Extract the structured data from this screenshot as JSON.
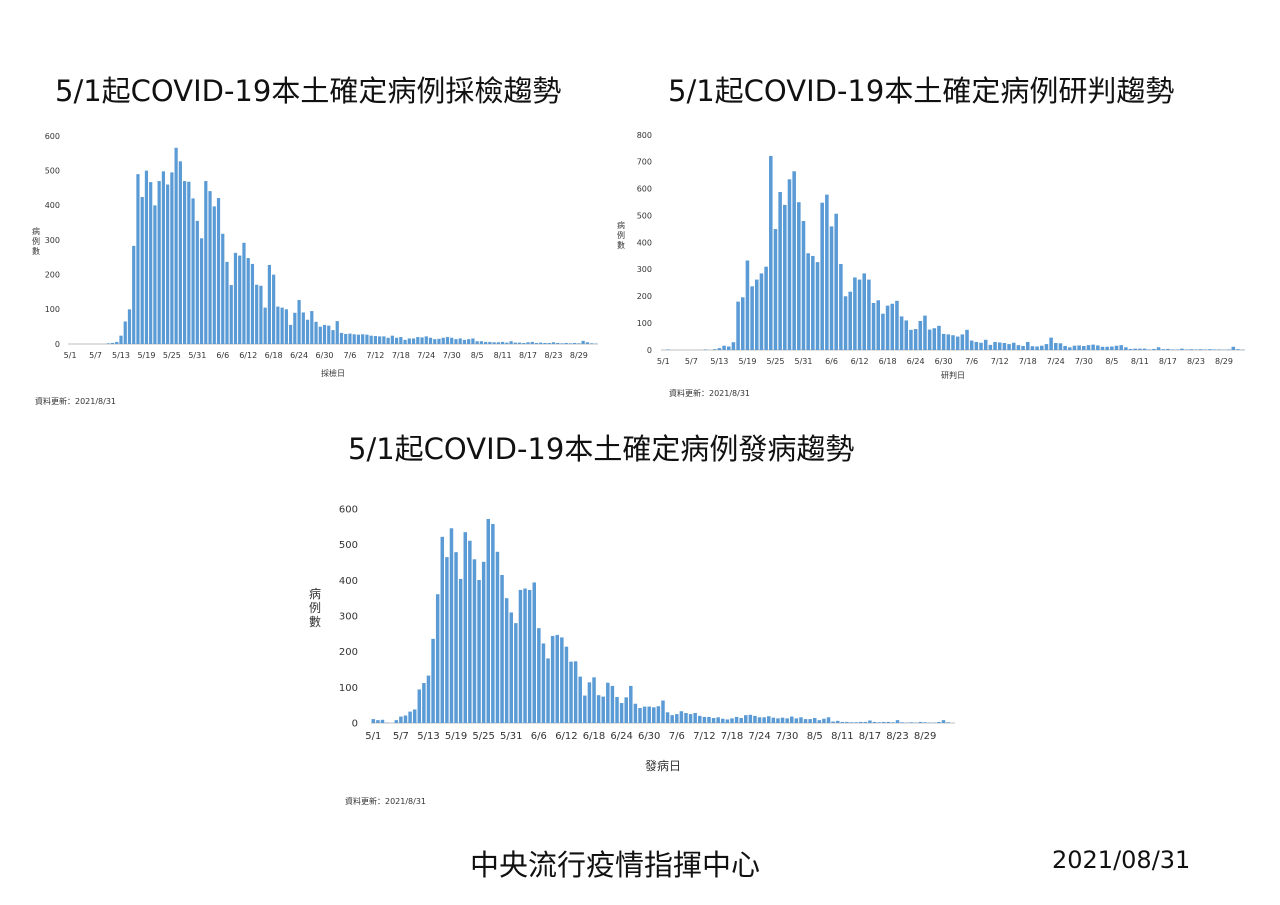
{
  "titles": {
    "sampling": "5/1起COVID-19本土確定病例採檢趨勢",
    "confirm": "5/1起COVID-19本土確定病例研判趨勢",
    "onset": "5/1起COVID-19本土確定病例發病趨勢"
  },
  "update_note": "資料更新：2021/8/31",
  "footer": {
    "org": "中央流行疫情指揮中心",
    "date": "2021/08/31"
  },
  "colors": {
    "bar": "#5b9bd5",
    "axis": "#bfbfbf"
  },
  "chart_data": [
    {
      "type": "bar",
      "id": "sampling",
      "xlabel": "採檢日",
      "ylabel": "病例數",
      "ylim": [
        0,
        600
      ],
      "yticks": [
        0,
        100,
        200,
        300,
        400,
        500,
        600
      ],
      "xtick_labels": [
        "5/1",
        "5/7",
        "5/13",
        "5/19",
        "5/25",
        "5/31",
        "6/6",
        "6/12",
        "6/18",
        "6/24",
        "6/30",
        "7/6",
        "7/12",
        "7/18",
        "7/24",
        "7/30",
        "8/5",
        "8/11",
        "8/17",
        "8/23",
        "8/29"
      ],
      "start": "5/1",
      "values": [
        0,
        0,
        0,
        0,
        0,
        0,
        0,
        0,
        0,
        2,
        3,
        6,
        24,
        65,
        100,
        283,
        490,
        424,
        500,
        467,
        400,
        470,
        498,
        460,
        495,
        566,
        527,
        470,
        468,
        420,
        355,
        305,
        470,
        441,
        397,
        421,
        318,
        237,
        170,
        263,
        255,
        292,
        248,
        231,
        171,
        168,
        105,
        228,
        200,
        108,
        105,
        100,
        55,
        90,
        127,
        91,
        70,
        95,
        64,
        50,
        55,
        53,
        40,
        66,
        32,
        29,
        30,
        28,
        27,
        28,
        27,
        24,
        23,
        22,
        22,
        18,
        24,
        18,
        20,
        12,
        16,
        16,
        20,
        19,
        22,
        18,
        14,
        15,
        18,
        20,
        18,
        14,
        16,
        12,
        14,
        16,
        8,
        8,
        6,
        6,
        5,
        5,
        6,
        4,
        8,
        4,
        4,
        3,
        5,
        6,
        3,
        4,
        3,
        3,
        5,
        3,
        2,
        3,
        2,
        3,
        2,
        9,
        5,
        2,
        1
      ]
    },
    {
      "type": "bar",
      "id": "confirm",
      "xlabel": "研判日",
      "ylabel": "病例數",
      "ylim": [
        0,
        800
      ],
      "yticks": [
        0,
        100,
        200,
        300,
        400,
        500,
        600,
        700,
        800
      ],
      "xtick_labels": [
        "5/1",
        "5/7",
        "5/13",
        "5/19",
        "5/25",
        "5/31",
        "6/6",
        "6/12",
        "6/18",
        "6/24",
        "6/30",
        "7/6",
        "7/12",
        "7/18",
        "7/24",
        "7/30",
        "8/5",
        "8/11",
        "8/17",
        "8/23",
        "8/29"
      ],
      "start": "5/1",
      "values": [
        0,
        2,
        0,
        0,
        0,
        0,
        0,
        0,
        0,
        2,
        0,
        3,
        7,
        16,
        13,
        29,
        180,
        196,
        333,
        237,
        262,
        285,
        310,
        722,
        450,
        588,
        540,
        635,
        665,
        550,
        480,
        360,
        350,
        327,
        548,
        578,
        460,
        507,
        320,
        200,
        217,
        270,
        262,
        285,
        262,
        175,
        185,
        135,
        165,
        172,
        183,
        125,
        110,
        75,
        78,
        108,
        128,
        76,
        81,
        90,
        60,
        58,
        55,
        50,
        58,
        75,
        35,
        30,
        27,
        38,
        19,
        30,
        28,
        26,
        22,
        27,
        18,
        15,
        30,
        14,
        13,
        16,
        22,
        46,
        26,
        25,
        15,
        10,
        16,
        17,
        15,
        18,
        20,
        17,
        12,
        12,
        13,
        16,
        18,
        10,
        4,
        5,
        5,
        5,
        2,
        4,
        10,
        3,
        4,
        2,
        2,
        5,
        2,
        3,
        2,
        3,
        2,
        3,
        2,
        2,
        1,
        2,
        12,
        3,
        1
      ]
    },
    {
      "type": "bar",
      "id": "onset",
      "xlabel": "發病日",
      "ylabel": "病例數",
      "ylim": [
        0,
        600
      ],
      "yticks": [
        0,
        100,
        200,
        300,
        400,
        500,
        600
      ],
      "xtick_labels": [
        "5/1",
        "5/7",
        "5/13",
        "5/19",
        "5/25",
        "5/31",
        "6/6",
        "6/12",
        "6/18",
        "6/24",
        "6/30",
        "7/6",
        "7/12",
        "7/18",
        "7/24",
        "7/30",
        "8/5",
        "8/11",
        "8/17",
        "8/23",
        "8/29"
      ],
      "start": "5/1",
      "values": [
        11,
        8,
        9,
        1,
        0,
        8,
        18,
        21,
        32,
        38,
        94,
        112,
        133,
        236,
        361,
        522,
        465,
        546,
        479,
        404,
        535,
        511,
        459,
        401,
        452,
        572,
        558,
        480,
        415,
        350,
        310,
        280,
        373,
        377,
        373,
        394,
        266,
        223,
        181,
        244,
        247,
        240,
        214,
        172,
        173,
        130,
        77,
        114,
        128,
        78,
        74,
        113,
        104,
        73,
        56,
        72,
        104,
        54,
        42,
        46,
        46,
        44,
        47,
        63,
        30,
        22,
        25,
        33,
        28,
        25,
        28,
        20,
        17,
        17,
        14,
        16,
        12,
        10,
        13,
        17,
        14,
        22,
        23,
        20,
        16,
        16,
        19,
        15,
        13,
        15,
        13,
        18,
        13,
        16,
        11,
        11,
        14,
        8,
        12,
        16,
        4,
        6,
        3,
        3,
        2,
        2,
        3,
        3,
        7,
        3,
        2,
        3,
        3,
        2,
        8,
        2,
        1,
        2,
        1,
        3,
        2,
        1,
        1,
        3,
        8,
        2,
        0
      ]
    }
  ]
}
